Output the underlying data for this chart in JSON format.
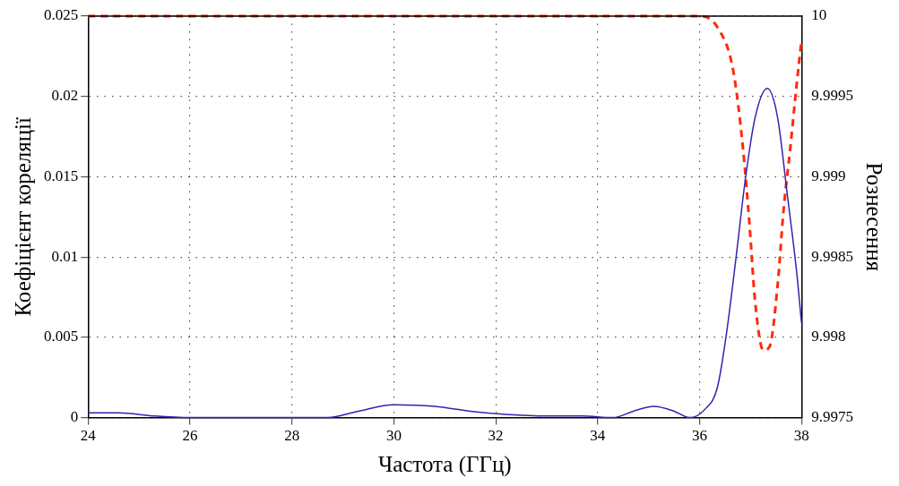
{
  "chart_data": {
    "type": "line",
    "xlabel": "Частота (ГГц)",
    "ylabel": "Коефіцієнт кореляції",
    "y2label": "Рознесення",
    "xlim": [
      24,
      38
    ],
    "xticks": [
      24,
      26,
      28,
      30,
      32,
      34,
      36,
      38
    ],
    "ylim": [
      0,
      0.025
    ],
    "yticks": [
      0,
      0.005,
      0.01,
      0.015,
      0.02,
      0.025
    ],
    "y2lim": [
      9.9975,
      10
    ],
    "y2ticks": [
      9.9975,
      9.998,
      9.9985,
      9.999,
      9.9995,
      10
    ],
    "grid": true,
    "legend": false,
    "marker": "none",
    "series": [
      {
        "color": "#3a1fb0",
        "line_style": "solid",
        "x": [
          24,
          24.6,
          25.3,
          26,
          27,
          28,
          28.7,
          29.3,
          30,
          30.8,
          31.5,
          32.2,
          33,
          33.7,
          34.3,
          34.7,
          35.1,
          35.5,
          35.8,
          36.1,
          36.35,
          36.53,
          36.72,
          36.9,
          37.09,
          37.33,
          37.53,
          37.72,
          37.9,
          38
        ],
        "values": [
          0.0003,
          0.0003,
          0.0001,
          0,
          0,
          0,
          0,
          0.0004,
          0.0008,
          0.0007,
          0.0004,
          0.0002,
          0.0001,
          0.0001,
          0,
          0.0004,
          0.0007,
          0.0004,
          0,
          0.0005,
          0.0019,
          0.0053,
          0.0101,
          0.0149,
          0.0187,
          0.0205,
          0.0187,
          0.0139,
          0.0092,
          0.0059
        ]
      },
      {
        "color": "#ff2a0a",
        "line_style": "dashed",
        "axis": "y2",
        "x": [
          24,
          30,
          35,
          35.98,
          36.35,
          36.66,
          36.85,
          36.98,
          37.09,
          37.25,
          37.37,
          37.53,
          37.65,
          37.78,
          37.9,
          38
        ],
        "values": [
          10,
          10,
          10,
          10,
          9.99993,
          9.99966,
          9.99918,
          9.9987,
          9.99822,
          9.99792,
          9.99794,
          9.99832,
          9.9988,
          9.99918,
          9.99956,
          9.99985
        ]
      }
    ]
  }
}
